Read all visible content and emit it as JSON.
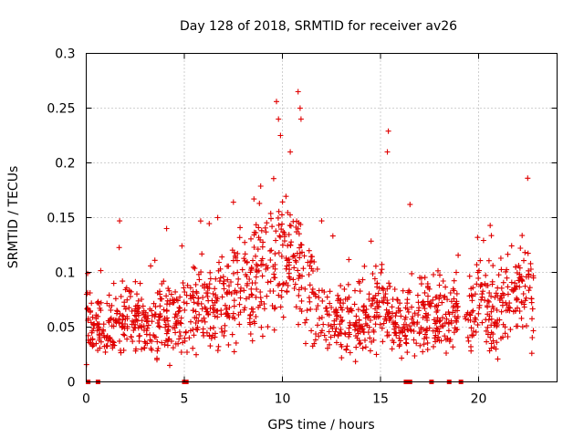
{
  "chart_data": {
    "type": "scatter",
    "title": "Day 128 of 2018, SRMTID for receiver av26",
    "xlabel": "GPS time / hours",
    "ylabel": "SRMTID / TECUs",
    "xlim": [
      0,
      24
    ],
    "ylim": [
      0,
      0.3
    ],
    "x_ticks": [
      0,
      5,
      10,
      15,
      20
    ],
    "x_tick_labels": [
      "0",
      "5",
      "10",
      "15",
      "20"
    ],
    "y_ticks": [
      0,
      0.05,
      0.1,
      0.15,
      0.2,
      0.25,
      0.3
    ],
    "y_tick_labels": [
      "0",
      "0.05",
      "0.1",
      "0.15",
      "0.2",
      "0.25",
      "0.3"
    ],
    "grid": true,
    "marker": "+",
    "marker_color": "#e00000",
    "series": [
      {
        "name": "SRMTID",
        "approx_baseline_hours": [
          0,
          1,
          2,
          3,
          4,
          5,
          6,
          7,
          8,
          9,
          10,
          11,
          12,
          13,
          14,
          15,
          16,
          17,
          18,
          19,
          20,
          21,
          22,
          22.8
        ],
        "approx_baseline_values": [
          0.06,
          0.04,
          0.06,
          0.05,
          0.06,
          0.06,
          0.07,
          0.07,
          0.09,
          0.1,
          0.11,
          0.1,
          0.06,
          0.055,
          0.055,
          0.07,
          0.05,
          0.06,
          0.06,
          0.06,
          0.07,
          0.07,
          0.08,
          0.08
        ],
        "notable_points": [
          {
            "x": 9.7,
            "y": 0.256
          },
          {
            "x": 9.8,
            "y": 0.24
          },
          {
            "x": 9.9,
            "y": 0.225
          },
          {
            "x": 10.8,
            "y": 0.265
          },
          {
            "x": 10.9,
            "y": 0.25
          },
          {
            "x": 10.95,
            "y": 0.24
          },
          {
            "x": 10.4,
            "y": 0.21
          },
          {
            "x": 15.4,
            "y": 0.229
          },
          {
            "x": 15.35,
            "y": 0.21
          },
          {
            "x": 22.5,
            "y": 0.186
          },
          {
            "x": 16.5,
            "y": 0.162
          },
          {
            "x": 1.7,
            "y": 0.147
          },
          {
            "x": 12.0,
            "y": 0.147
          },
          {
            "x": 6.7,
            "y": 0.15
          },
          {
            "x": 4.1,
            "y": 0.14
          }
        ],
        "zero_points_x": [
          0.1,
          0.6,
          5.0,
          5.1,
          16.3,
          16.5,
          17.6,
          18.5,
          19.1
        ]
      }
    ]
  }
}
